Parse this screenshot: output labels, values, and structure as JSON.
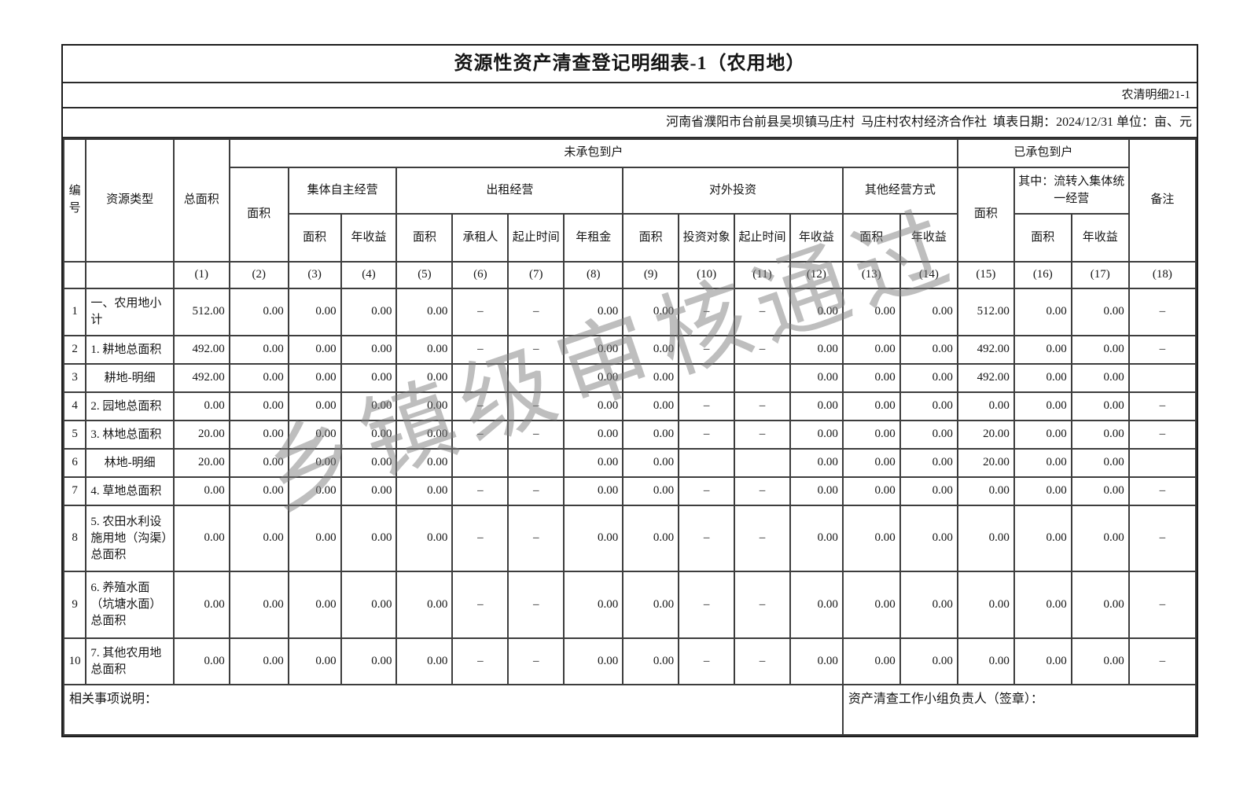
{
  "meta": {
    "title": "资源性资产清查登记明细表-1（农用地）",
    "form_code": "农清明细21-1",
    "info_line": "河南省濮阳市台前县吴坝镇马庄村  马庄村农村经济合作社  填表日期：2024/12/31 单位：亩、元"
  },
  "watermark": "乡镇级审核通过",
  "table": {
    "header": {
      "col_no": "编号",
      "resource_type": "资源类型",
      "total_area": "总面积",
      "group_uncontracted": "未承包到户",
      "group_contracted": "已承包到户",
      "remark": "备注",
      "area": "面积",
      "annual_income": "年收益",
      "collective_self": "集体自主经营",
      "rental": "出租经营",
      "investment": "对外投资",
      "other_mode": "其他经营方式",
      "transfer_collective": "其中：流转入集体统一经营",
      "lessee": "承租人",
      "period": "起止时间",
      "annual_rent": "年租金",
      "invest_target": "投资对象",
      "col_numbers": [
        "(1)",
        "(2)",
        "(3)",
        "(4)",
        "(5)",
        "(6)",
        "(7)",
        "(8)",
        "(9)",
        "(10)",
        "(11)",
        "(12)",
        "(13)",
        "(14)",
        "(15)",
        "(16)",
        "(17)",
        "(18)"
      ]
    },
    "rows": [
      {
        "no": "1",
        "type": "一、农用地小计",
        "center": false,
        "values": [
          "512.00",
          "0.00",
          "0.00",
          "0.00",
          "0.00",
          "–",
          "–",
          "0.00",
          "0.00",
          "–",
          "–",
          "0.00",
          "0.00",
          "0.00",
          "512.00",
          "0.00",
          "0.00",
          "–"
        ]
      },
      {
        "no": "2",
        "type": "1. 耕地总面积",
        "center": false,
        "values": [
          "492.00",
          "0.00",
          "0.00",
          "0.00",
          "0.00",
          "–",
          "–",
          "0.00",
          "0.00",
          "–",
          "–",
          "0.00",
          "0.00",
          "0.00",
          "492.00",
          "0.00",
          "0.00",
          "–"
        ]
      },
      {
        "no": "3",
        "type": "耕地-明细",
        "center": true,
        "values": [
          "492.00",
          "0.00",
          "0.00",
          "0.00",
          "0.00",
          "",
          "",
          "0.00",
          "0.00",
          "",
          "",
          "0.00",
          "0.00",
          "0.00",
          "492.00",
          "0.00",
          "0.00",
          ""
        ]
      },
      {
        "no": "4",
        "type": "2. 园地总面积",
        "center": false,
        "values": [
          "0.00",
          "0.00",
          "0.00",
          "0.00",
          "0.00",
          "–",
          "–",
          "0.00",
          "0.00",
          "–",
          "–",
          "0.00",
          "0.00",
          "0.00",
          "0.00",
          "0.00",
          "0.00",
          "–"
        ]
      },
      {
        "no": "5",
        "type": "3. 林地总面积",
        "center": false,
        "values": [
          "20.00",
          "0.00",
          "0.00",
          "0.00",
          "0.00",
          "–",
          "–",
          "0.00",
          "0.00",
          "–",
          "–",
          "0.00",
          "0.00",
          "0.00",
          "20.00",
          "0.00",
          "0.00",
          "–"
        ]
      },
      {
        "no": "6",
        "type": "林地-明细",
        "center": true,
        "values": [
          "20.00",
          "0.00",
          "0.00",
          "0.00",
          "0.00",
          "",
          "",
          "0.00",
          "0.00",
          "",
          "",
          "0.00",
          "0.00",
          "0.00",
          "20.00",
          "0.00",
          "0.00",
          ""
        ]
      },
      {
        "no": "7",
        "type": "4. 草地总面积",
        "center": false,
        "values": [
          "0.00",
          "0.00",
          "0.00",
          "0.00",
          "0.00",
          "–",
          "–",
          "0.00",
          "0.00",
          "–",
          "–",
          "0.00",
          "0.00",
          "0.00",
          "0.00",
          "0.00",
          "0.00",
          "–"
        ]
      },
      {
        "no": "8",
        "type": "5. 农田水利设施用地（沟渠）总面积",
        "center": false,
        "values": [
          "0.00",
          "0.00",
          "0.00",
          "0.00",
          "0.00",
          "–",
          "–",
          "0.00",
          "0.00",
          "–",
          "–",
          "0.00",
          "0.00",
          "0.00",
          "0.00",
          "0.00",
          "0.00",
          "–"
        ]
      },
      {
        "no": "9",
        "type": "6. 养殖水面（坑塘水面）总面积",
        "center": false,
        "values": [
          "0.00",
          "0.00",
          "0.00",
          "0.00",
          "0.00",
          "–",
          "–",
          "0.00",
          "0.00",
          "–",
          "–",
          "0.00",
          "0.00",
          "0.00",
          "0.00",
          "0.00",
          "0.00",
          "–"
        ]
      },
      {
        "no": "10",
        "type": "7. 其他农用地总面积",
        "center": false,
        "values": [
          "0.00",
          "0.00",
          "0.00",
          "0.00",
          "0.00",
          "–",
          "–",
          "0.00",
          "0.00",
          "–",
          "–",
          "0.00",
          "0.00",
          "0.00",
          "0.00",
          "0.00",
          "0.00",
          "–"
        ]
      }
    ],
    "footer": {
      "left": "相关事项说明：",
      "right": "资产清查工作小组负责人（签章）："
    }
  }
}
